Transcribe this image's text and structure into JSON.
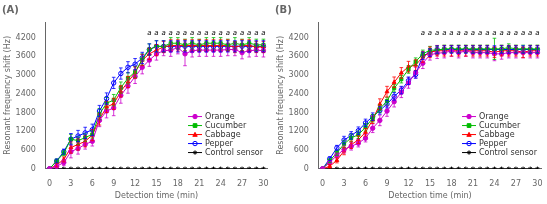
{
  "chart_data": [
    {
      "type": "line",
      "title": "(A)",
      "xlabel": "Detection time (min)",
      "ylabel": "Resonant frequency shift (Hz)",
      "xlim": [
        -0.5,
        30.5
      ],
      "xticks": [
        0,
        3,
        6,
        9,
        12,
        15,
        18,
        21,
        24,
        27,
        30
      ],
      "ylim": [
        0,
        4700
      ],
      "yticks": [
        0,
        600,
        1200,
        1800,
        2400,
        3000,
        3600,
        4200
      ],
      "grid": false,
      "legend": "lower right",
      "x": [
        0,
        1,
        2,
        3,
        4,
        5,
        6,
        7,
        8,
        9,
        10,
        11,
        12,
        13,
        14,
        15,
        16,
        17,
        18,
        19,
        20,
        21,
        22,
        23,
        24,
        25,
        26,
        27,
        28,
        29,
        30
      ],
      "series": [
        {
          "name": "Orange",
          "color": "#cc00cc",
          "marker": "circle",
          "values": [
            0,
            80,
            200,
            550,
            650,
            780,
            880,
            1550,
            1850,
            1950,
            2350,
            2650,
            2950,
            3250,
            3480,
            3680,
            3780,
            3800,
            3880,
            3680,
            3780,
            3800,
            3800,
            3800,
            3800,
            3820,
            3820,
            3720,
            3780,
            3800,
            3780
          ],
          "errors": [
            0,
            60,
            100,
            200,
            180,
            150,
            150,
            200,
            220,
            250,
            250,
            230,
            220,
            210,
            200,
            200,
            160,
            200,
            200,
            380,
            200,
            200,
            200,
            200,
            200,
            200,
            200,
            200,
            200,
            200,
            200
          ]
        },
        {
          "name": "Cucumber",
          "color": "#00bb00",
          "marker": "square",
          "values": [
            0,
            250,
            500,
            950,
            900,
            1000,
            1100,
            1750,
            2100,
            2200,
            2600,
            2900,
            3100,
            3500,
            3820,
            3920,
            3920,
            4020,
            4020,
            3970,
            4020,
            3970,
            4020,
            4020,
            4020,
            3970,
            4020,
            3970,
            4020,
            3970,
            3970
          ],
          "errors": [
            0,
            60,
            80,
            150,
            120,
            120,
            120,
            180,
            180,
            180,
            180,
            180,
            180,
            180,
            180,
            180,
            180,
            180,
            180,
            180,
            180,
            180,
            180,
            180,
            180,
            180,
            180,
            180,
            180,
            180,
            180
          ]
        },
        {
          "name": "Cabbage",
          "color": "#ff0000",
          "marker": "triangle",
          "values": [
            0,
            120,
            300,
            680,
            780,
            880,
            1080,
            1580,
            1980,
            2080,
            2480,
            2780,
            3080,
            3480,
            3680,
            3800,
            3900,
            3950,
            3950,
            3950,
            3950,
            3950,
            3950,
            3950,
            3950,
            3950,
            3900,
            3950,
            3950,
            3900,
            3900
          ],
          "errors": [
            0,
            60,
            80,
            180,
            180,
            180,
            180,
            180,
            180,
            180,
            180,
            180,
            180,
            180,
            180,
            180,
            180,
            180,
            180,
            180,
            180,
            180,
            180,
            180,
            180,
            180,
            180,
            180,
            180,
            180,
            180
          ]
        },
        {
          "name": "Pepper",
          "color": "#0000ff",
          "marker": "open circle",
          "values": [
            0,
            250,
            550,
            950,
            1050,
            1150,
            1250,
            1850,
            2250,
            2750,
            3050,
            3250,
            3350,
            3550,
            3820,
            3920,
            3920,
            3920,
            3920,
            3920,
            3920,
            3920,
            3920,
            3920,
            3920,
            3920,
            3920,
            3920,
            3920,
            3920,
            3920
          ],
          "errors": [
            0,
            60,
            80,
            180,
            180,
            180,
            180,
            180,
            180,
            180,
            180,
            180,
            180,
            180,
            180,
            180,
            180,
            180,
            180,
            180,
            180,
            180,
            180,
            180,
            180,
            180,
            180,
            180,
            180,
            180,
            180
          ]
        },
        {
          "name": "Control sensor",
          "color": "#000000",
          "marker": "star",
          "values": [
            0,
            0,
            0,
            0,
            0,
            0,
            0,
            0,
            0,
            0,
            0,
            0,
            0,
            0,
            0,
            0,
            0,
            0,
            0,
            0,
            0,
            0,
            0,
            0,
            0,
            0,
            0,
            0,
            0,
            0,
            0
          ],
          "errors": [
            0,
            0,
            0,
            0,
            0,
            0,
            0,
            0,
            0,
            0,
            0,
            0,
            0,
            0,
            0,
            0,
            0,
            0,
            0,
            0,
            0,
            0,
            0,
            0,
            0,
            0,
            0,
            0,
            0,
            0,
            0
          ]
        }
      ],
      "annotations": [
        {
          "text": "a",
          "x": 14,
          "y": 4200
        },
        {
          "text": "a",
          "x": 15,
          "y": 4200
        },
        {
          "text": "a",
          "x": 16,
          "y": 4200
        },
        {
          "text": "a",
          "x": 17,
          "y": 4200
        },
        {
          "text": "a",
          "x": 18,
          "y": 4200
        },
        {
          "text": "a",
          "x": 19,
          "y": 4200
        },
        {
          "text": "a",
          "x": 20,
          "y": 4200
        },
        {
          "text": "a",
          "x": 21,
          "y": 4200
        },
        {
          "text": "a",
          "x": 22,
          "y": 4200
        },
        {
          "text": "a",
          "x": 23,
          "y": 4200
        },
        {
          "text": "a",
          "x": 24,
          "y": 4200
        },
        {
          "text": "a",
          "x": 25,
          "y": 4200
        },
        {
          "text": "a",
          "x": 26,
          "y": 4200
        },
        {
          "text": "a",
          "x": 27,
          "y": 4200
        },
        {
          "text": "a",
          "x": 28,
          "y": 4200
        },
        {
          "text": "a",
          "x": 29,
          "y": 4200
        },
        {
          "text": "a",
          "x": 30,
          "y": 4200
        }
      ]
    },
    {
      "type": "line",
      "title": "(B)",
      "xlabel": "Detection time (min)",
      "ylabel": "Resonant frequency shift (Hz)",
      "xlim": [
        -0.5,
        30.5
      ],
      "xticks": [
        0,
        3,
        6,
        9,
        12,
        15,
        18,
        21,
        24,
        27,
        30
      ],
      "ylim": [
        0,
        4700
      ],
      "yticks": [
        0,
        600,
        1200,
        1800,
        2400,
        3000,
        3600,
        4200
      ],
      "grid": false,
      "legend": "lower right",
      "x": [
        0,
        1,
        2,
        3,
        4,
        5,
        6,
        7,
        8,
        9,
        10,
        11,
        12,
        13,
        14,
        15,
        16,
        17,
        18,
        19,
        20,
        21,
        22,
        23,
        24,
        25,
        26,
        27,
        28,
        29,
        30
      ],
      "series": [
        {
          "name": "Orange",
          "color": "#cc00cc",
          "marker": "circle",
          "values": [
            0,
            200,
            430,
            620,
            720,
            820,
            980,
            1300,
            1550,
            1850,
            2150,
            2450,
            2750,
            3080,
            3380,
            3650,
            3700,
            3720,
            3770,
            3720,
            3770,
            3720,
            3720,
            3720,
            3680,
            3680,
            3720,
            3720,
            3720,
            3720,
            3720
          ],
          "errors": [
            0,
            60,
            80,
            120,
            120,
            120,
            120,
            140,
            170,
            170,
            170,
            170,
            170,
            170,
            170,
            170,
            170,
            170,
            170,
            170,
            170,
            170,
            170,
            170,
            220,
            170,
            170,
            170,
            170,
            170,
            170
          ]
        },
        {
          "name": "Cucumber",
          "color": "#00bb00",
          "marker": "square",
          "values": [
            0,
            260,
            510,
            790,
            990,
            1090,
            1330,
            1620,
            1920,
            2170,
            2580,
            2870,
            3180,
            3430,
            3680,
            3800,
            3800,
            3840,
            3840,
            3840,
            3840,
            3840,
            3840,
            3840,
            3840,
            3840,
            3880,
            3840,
            3840,
            3840,
            3840
          ],
          "errors": [
            0,
            60,
            80,
            120,
            120,
            120,
            120,
            120,
            120,
            120,
            120,
            120,
            120,
            120,
            120,
            120,
            120,
            120,
            120,
            120,
            120,
            120,
            120,
            120,
            340,
            120,
            120,
            120,
            120,
            120,
            120
          ]
        },
        {
          "name": "Cabbage",
          "color": "#ff0000",
          "marker": "triangle",
          "values": [
            0,
            80,
            270,
            570,
            770,
            930,
            1170,
            1570,
            2070,
            2470,
            2770,
            3070,
            3270,
            3320,
            3580,
            3730,
            3780,
            3780,
            3780,
            3780,
            3780,
            3780,
            3780,
            3780,
            3730,
            3780,
            3780,
            3780,
            3730,
            3780,
            3780
          ],
          "errors": [
            0,
            60,
            80,
            120,
            120,
            120,
            120,
            120,
            170,
            170,
            170,
            170,
            170,
            170,
            170,
            170,
            170,
            170,
            170,
            170,
            170,
            170,
            170,
            170,
            170,
            170,
            170,
            170,
            170,
            170,
            170
          ]
        },
        {
          "name": "Pepper",
          "color": "#0000ff",
          "marker": "open circle",
          "values": [
            0,
            320,
            670,
            920,
            1070,
            1220,
            1470,
            1670,
            1870,
            2070,
            2320,
            2520,
            2820,
            3020,
            3620,
            3720,
            3820,
            3820,
            3820,
            3820,
            3820,
            3820,
            3820,
            3820,
            3820,
            3820,
            3820,
            3820,
            3820,
            3820,
            3820
          ],
          "errors": [
            0,
            60,
            80,
            120,
            120,
            120,
            120,
            120,
            120,
            120,
            120,
            120,
            120,
            120,
            120,
            120,
            120,
            120,
            120,
            120,
            120,
            120,
            120,
            120,
            120,
            120,
            120,
            120,
            120,
            120,
            120
          ]
        },
        {
          "name": "Control sensor",
          "color": "#000000",
          "marker": "star",
          "values": [
            0,
            0,
            0,
            0,
            0,
            0,
            0,
            0,
            0,
            0,
            0,
            0,
            0,
            0,
            0,
            0,
            0,
            0,
            0,
            0,
            0,
            0,
            0,
            0,
            0,
            0,
            0,
            0,
            0,
            0,
            0
          ],
          "errors": [
            0,
            0,
            0,
            0,
            0,
            0,
            0,
            0,
            0,
            0,
            0,
            0,
            0,
            0,
            0,
            0,
            0,
            0,
            0,
            0,
            0,
            0,
            0,
            0,
            0,
            0,
            0,
            0,
            0,
            0,
            0
          ]
        }
      ],
      "annotations": [
        {
          "text": "a",
          "x": 14,
          "y": 4200
        },
        {
          "text": "a",
          "x": 15,
          "y": 4200
        },
        {
          "text": "a",
          "x": 16,
          "y": 4200
        },
        {
          "text": "a",
          "x": 17,
          "y": 4200
        },
        {
          "text": "a",
          "x": 18,
          "y": 4200
        },
        {
          "text": "a",
          "x": 19,
          "y": 4200
        },
        {
          "text": "a",
          "x": 20,
          "y": 4200
        },
        {
          "text": "a",
          "x": 21,
          "y": 4200
        },
        {
          "text": "a",
          "x": 22,
          "y": 4200
        },
        {
          "text": "a",
          "x": 23,
          "y": 4200
        },
        {
          "text": "a",
          "x": 24,
          "y": 4200
        },
        {
          "text": "a",
          "x": 25,
          "y": 4200
        },
        {
          "text": "a",
          "x": 26,
          "y": 4200
        },
        {
          "text": "a",
          "x": 27,
          "y": 4200
        },
        {
          "text": "a",
          "x": 28,
          "y": 4200
        },
        {
          "text": "a",
          "x": 29,
          "y": 4200
        },
        {
          "text": "a",
          "x": 30,
          "y": 4200
        }
      ]
    }
  ]
}
